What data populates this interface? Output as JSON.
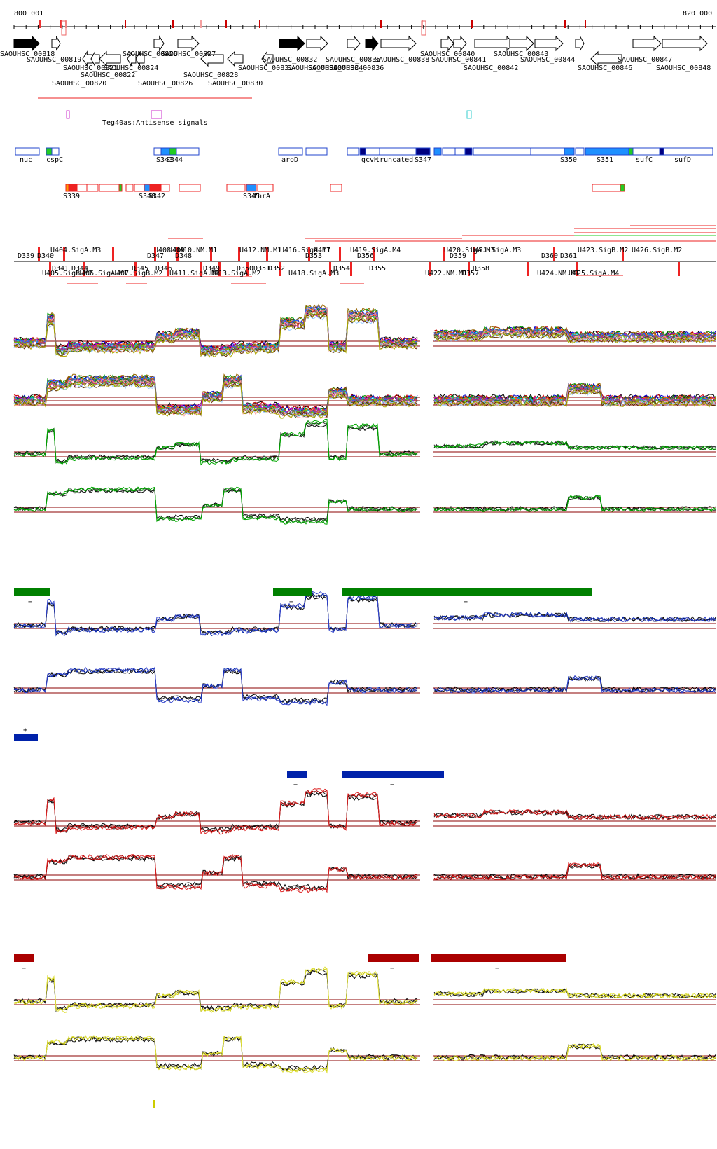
{
  "genome_view": {
    "coord_start_label": "800 001",
    "coord_end_label": "820 000",
    "colors": {
      "forward_gene": "#ffffff",
      "highlight_gene": "#000000",
      "antisense_box": "#cc33cc",
      "antisense_cyan": "#33cccc",
      "utr_box": "#2244cc",
      "utr_fill_light": "#1e90ff",
      "utr_fill_dark": "#000080",
      "utr_green": "#22cc22",
      "srna_box": "#ee2222",
      "condition_1": "#008000",
      "condition_2": "#0022aa",
      "condition_3": "#aa0000",
      "condition_4": "#cccc00",
      "threshold_line": "#8b0000"
    }
  },
  "tracks": {
    "genes_top_row": [
      "SAOUHSC_00818",
      "SAOUHSC_00825",
      "SAOUHSC_00827",
      "SAOUHSC_00832",
      "SAOUHSC_00835",
      "SAOUHSC_00836",
      "SAOUHSC_00838",
      "SAOUHSC_00840",
      "SAOUHSC_00843",
      "SAOUHSC_00847"
    ],
    "genes_second_row": [
      "SAOUHSC_00819",
      "SAOUHSC_00821",
      "SAOUHSC_00824",
      "SAOUHSC_00831",
      "SAOUHSC_00833",
      "SAOUHSC_00834",
      "SAOUHSC_00841",
      "SAOUHSC_00844",
      "SAOUHSC_00846",
      "SAOUHSC_00848"
    ],
    "genes_third_row": [
      "SAOUHSC_00822",
      "SAOUHSC_00828",
      "SAOUHSC_00842"
    ],
    "genes_fourth_row": [
      "SAOUHSC_00820",
      "SAOUHSC_00826",
      "SAOUHSC_00830"
    ],
    "antisense_label": "Teg40as:Antisense signals",
    "annotation_labels": [
      "nuc",
      "cspC",
      "S343",
      "S344",
      "aroD",
      "gcvH",
      "truncated",
      "S347",
      "S350",
      "S351",
      "sufC",
      "sufD"
    ],
    "srna_labels": [
      "S339",
      "S340",
      "S342",
      "S345",
      "thrA"
    ],
    "tu_labels_upper": [
      "D339",
      "D340",
      "U404.SigA.M3",
      "U408",
      "U409",
      "U410.NM.M1",
      "D347",
      "D348",
      "U412.NM.M1",
      "U416.SigA.M1",
      "U417",
      "U419.SigA.M4",
      "D353",
      "D356",
      "U420.SigA.M3",
      "U421.SigA.M3",
      "D359",
      "D360",
      "D361",
      "U423.SigB.M2",
      "U426.SigB.M2"
    ],
    "tu_labels_lower": [
      "U405.SigB.M2",
      "D341",
      "D344",
      "U406.SigA.M1",
      "U407.SigB.M2",
      "D345",
      "D346",
      "U411.SigA.M3",
      "D349",
      "D350",
      "D351",
      "D352",
      "U413.SigA.M2",
      "U418.SigA.M3",
      "D354",
      "D355",
      "U422.NM.M1",
      "D357",
      "D358",
      "U424.NM.M1",
      "U425.SigA.M4"
    ]
  },
  "condition_bars": {
    "group_1_signs": [
      "−",
      "−",
      "−"
    ],
    "group_2_signs": [
      "+",
      "−",
      "−"
    ],
    "group_3_signs": [
      "−",
      "−",
      "−"
    ]
  }
}
